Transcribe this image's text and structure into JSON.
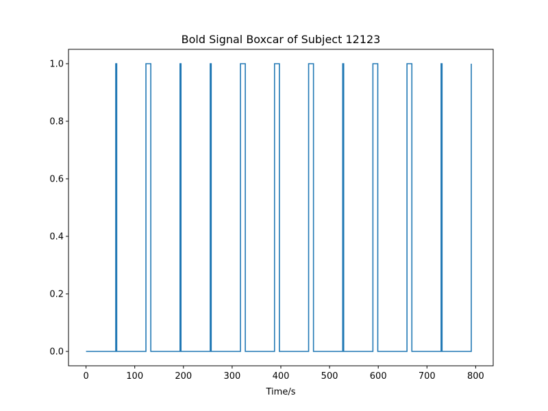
{
  "chart_data": {
    "type": "line",
    "title": "Bold Signal Boxcar of Subject 12123",
    "xlabel": "Time/s",
    "ylabel": "",
    "xlim": [
      -36,
      836
    ],
    "ylim": [
      -0.05,
      1.05
    ],
    "xticks": [
      0,
      100,
      200,
      300,
      400,
      500,
      600,
      700,
      800
    ],
    "yticks": [
      0.0,
      0.2,
      0.4,
      0.6,
      0.8,
      1.0
    ],
    "ytick_labels": [
      "0.0",
      "0.2",
      "0.4",
      "0.6",
      "0.8",
      "1.0"
    ],
    "line_color": "#1f77b4",
    "grid": false,
    "series": [
      {
        "step": true,
        "x": [
          0,
          61,
          61,
          63,
          63,
          123,
          123,
          133,
          133,
          193,
          193,
          195,
          195,
          255,
          255,
          257,
          257,
          317,
          317,
          327,
          327,
          387,
          387,
          397,
          397,
          457,
          457,
          467,
          467,
          527,
          527,
          529,
          529,
          589,
          589,
          599,
          599,
          659,
          659,
          669,
          669,
          729,
          729,
          731,
          731,
          791,
          791
        ],
        "y": [
          0,
          0,
          1,
          1,
          0,
          0,
          1,
          1,
          0,
          0,
          1,
          1,
          0,
          0,
          1,
          1,
          0,
          0,
          1,
          1,
          0,
          0,
          1,
          1,
          0,
          0,
          1,
          1,
          0,
          0,
          1,
          1,
          0,
          0,
          1,
          1,
          0,
          0,
          1,
          1,
          0,
          0,
          1,
          1,
          0,
          0,
          1
        ]
      }
    ]
  }
}
